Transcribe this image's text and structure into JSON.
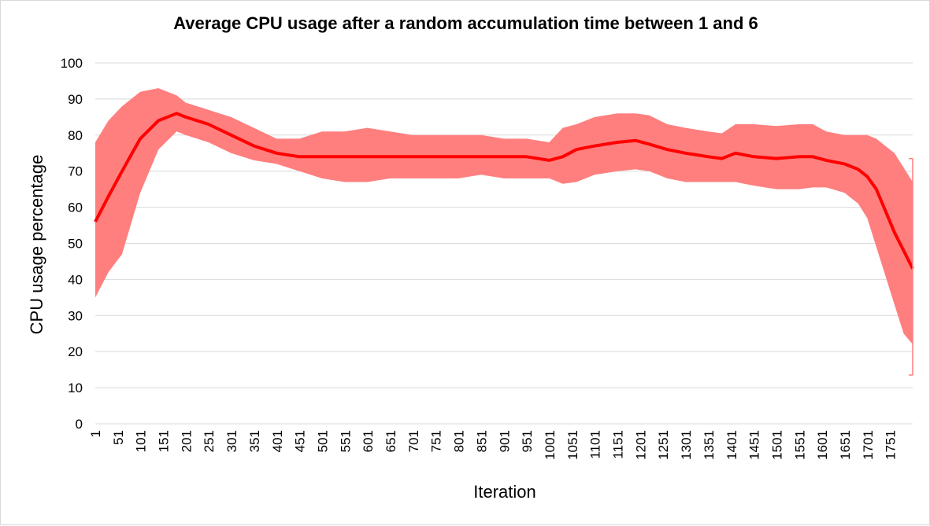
{
  "chart_data": {
    "type": "line",
    "title": "Average CPU usage after a  random accumulation time between 1 and 6",
    "xlabel": "Iteration",
    "ylabel": "CPU usage percentage",
    "ylim": [
      0,
      100
    ],
    "xlim": [
      1,
      1800
    ],
    "yticks": [
      0,
      10,
      20,
      30,
      40,
      50,
      60,
      70,
      80,
      90,
      100
    ],
    "xticks": [
      1,
      51,
      101,
      151,
      201,
      251,
      301,
      351,
      401,
      451,
      501,
      551,
      601,
      651,
      701,
      751,
      801,
      851,
      901,
      951,
      1001,
      1051,
      1101,
      1151,
      1201,
      1251,
      1301,
      1351,
      1401,
      1451,
      1501,
      1551,
      1601,
      1651,
      1701,
      1751
    ],
    "grid": true,
    "colors": {
      "line": "#ff0000",
      "band": "#ff7f7f",
      "grid": "#d9d9d9"
    },
    "series": [
      {
        "x": [
          1,
          30,
          60,
          100,
          140,
          180,
          200,
          250,
          300,
          350,
          400,
          450,
          500,
          550,
          600,
          650,
          700,
          750,
          800,
          850,
          900,
          950,
          1000,
          1030,
          1060,
          1100,
          1150,
          1190,
          1220,
          1260,
          1300,
          1350,
          1380,
          1410,
          1450,
          1500,
          1550,
          1580,
          1610,
          1650,
          1680,
          1700,
          1720,
          1740,
          1760,
          1780,
          1800
        ],
        "values": [
          56,
          63,
          70,
          79,
          84,
          86,
          85,
          83,
          80,
          77,
          75,
          74,
          74,
          74,
          74,
          74,
          74,
          74,
          74,
          74,
          74,
          74,
          73,
          74,
          76,
          77,
          78,
          78.5,
          77.5,
          76,
          75,
          74,
          73.5,
          75,
          74,
          73.5,
          74,
          74,
          73,
          72,
          70.5,
          68.5,
          65,
          59,
          53,
          48,
          43
        ],
        "upper": [
          78,
          84,
          88,
          92,
          93,
          91,
          89,
          87,
          85,
          82,
          79,
          79,
          81,
          81,
          82,
          81,
          80,
          80,
          80,
          80,
          79,
          79,
          78,
          82,
          83,
          85,
          86,
          86,
          85.5,
          83,
          82,
          81,
          80.5,
          83,
          83,
          82.5,
          83,
          83,
          81,
          80,
          80,
          80,
          79,
          77,
          75,
          71,
          67
        ],
        "lower": [
          35,
          42,
          47,
          64,
          76,
          81,
          80,
          78,
          75,
          73,
          72,
          70,
          68,
          67,
          67,
          68,
          68,
          68,
          68,
          69,
          68,
          68,
          68,
          66.5,
          67,
          69,
          70,
          70.5,
          70,
          68,
          67,
          67,
          67,
          67,
          66,
          65,
          65,
          65.5,
          65.5,
          64,
          61,
          57,
          49,
          41,
          33,
          25,
          22
        ]
      }
    ],
    "annotations": [
      {
        "type": "error-bar",
        "x": 1800,
        "upper": 73.5,
        "lower": 13.5
      }
    ]
  }
}
